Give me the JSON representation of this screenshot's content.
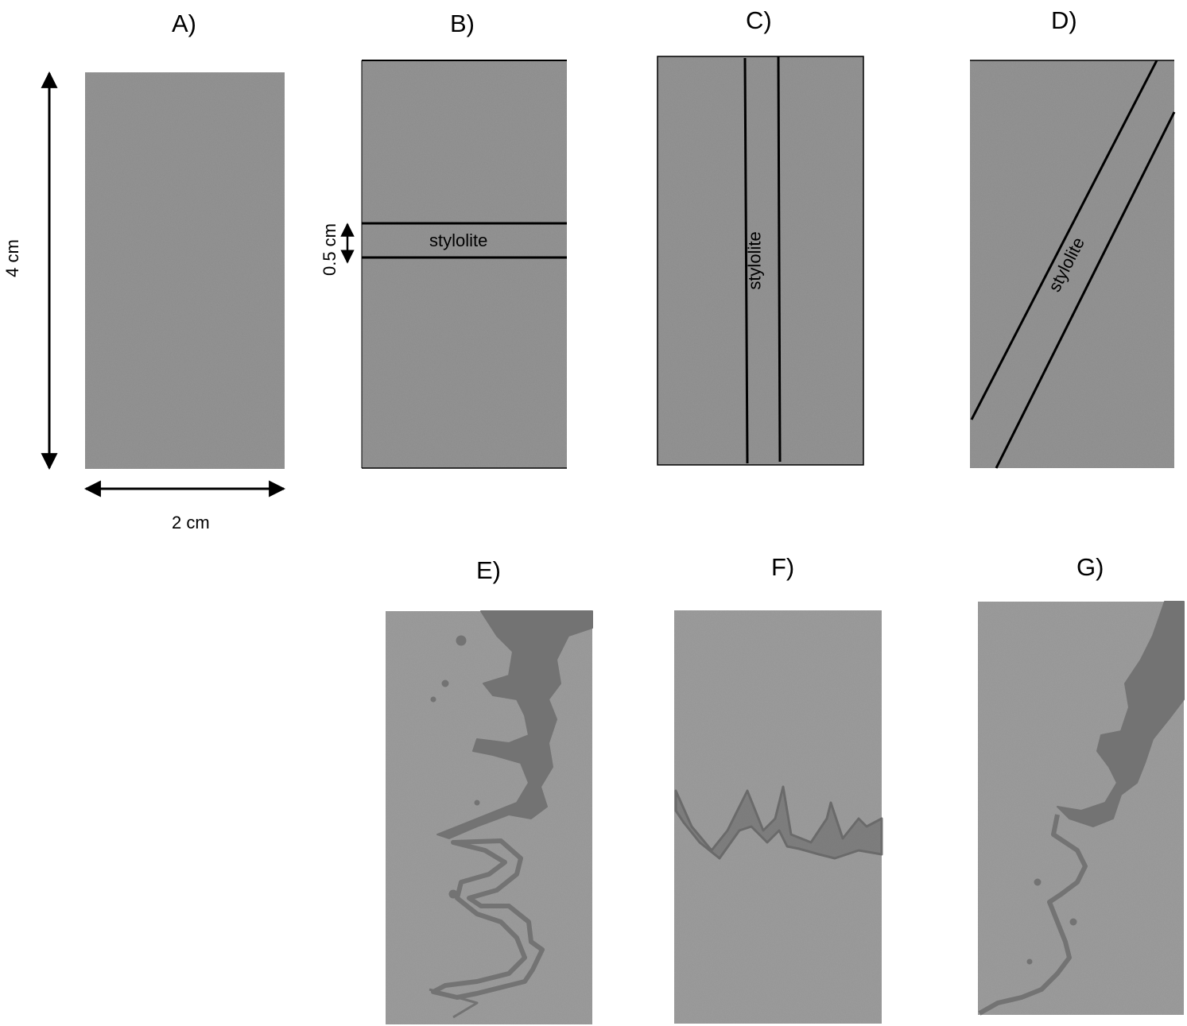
{
  "panels": [
    {
      "id": "A",
      "label": "A)"
    },
    {
      "id": "B",
      "label": "B)"
    },
    {
      "id": "C",
      "label": "C)"
    },
    {
      "id": "D",
      "label": "D)"
    },
    {
      "id": "E",
      "label": "E)"
    },
    {
      "id": "F",
      "label": "F)"
    },
    {
      "id": "G",
      "label": "G)"
    }
  ],
  "dimensions": {
    "height": "4 cm",
    "width": "2 cm",
    "stylolite_thickness": "0.5 cm"
  },
  "stylolite_label": "stylolite",
  "colors": {
    "sample_base": "#8f8f8f",
    "stylolite_dark": "#6f6f6f",
    "line": "#000000"
  }
}
